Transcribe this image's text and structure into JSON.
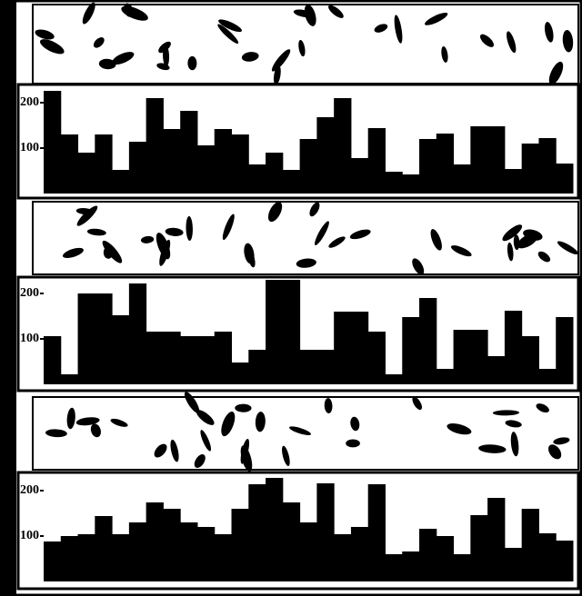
{
  "chart_data": [
    {
      "type": "bar",
      "ylim": [
        0,
        240
      ],
      "yticks": [
        100,
        200
      ],
      "color": "#000000",
      "values": [
        226,
        130,
        90,
        130,
        52,
        114,
        210,
        142,
        182,
        106,
        142,
        130,
        64,
        90,
        52,
        120,
        168,
        210,
        78,
        144,
        48,
        42,
        120,
        132,
        64,
        148,
        148,
        54,
        110,
        122,
        66
      ]
    },
    {
      "type": "bar",
      "ylim": [
        0,
        240
      ],
      "yticks": [
        100,
        200
      ],
      "color": "#000000",
      "values": [
        106,
        22,
        200,
        200,
        152,
        222,
        116,
        116,
        106,
        106,
        116,
        48,
        76,
        230,
        230,
        76,
        76,
        160,
        160,
        116,
        22,
        148,
        190,
        34,
        120,
        120,
        62,
        162,
        106,
        34,
        148
      ]
    },
    {
      "type": "bar",
      "ylim": [
        0,
        240
      ],
      "yticks": [
        100,
        200
      ],
      "color": "#000000",
      "values": [
        88,
        100,
        104,
        144,
        104,
        130,
        174,
        160,
        130,
        120,
        104,
        160,
        214,
        228,
        174,
        130,
        216,
        104,
        120,
        214,
        60,
        66,
        116,
        100,
        60,
        146,
        184,
        74,
        160,
        106,
        90
      ]
    }
  ]
}
